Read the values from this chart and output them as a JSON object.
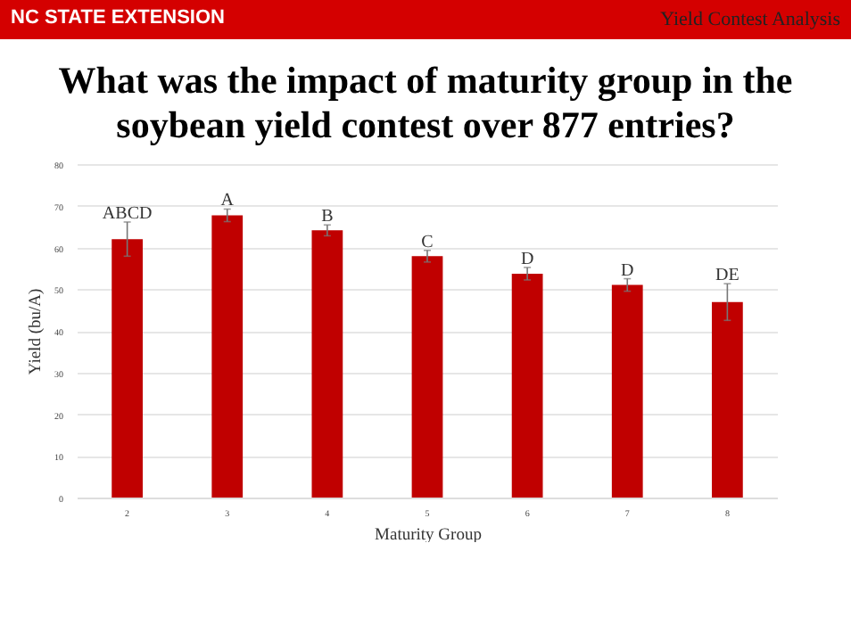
{
  "chart_data": {
    "type": "bar",
    "title": "What was the impact of maturity group in the soybean yield contest over 877 entries?",
    "xlabel": "Maturity Group",
    "ylabel": "Yield (bu/A)",
    "categories": [
      "2",
      "3",
      "4",
      "5",
      "6",
      "7",
      "8"
    ],
    "values": [
      62,
      67.7,
      64.1,
      57.9,
      53.7,
      51,
      46.9
    ],
    "errors": [
      4.1,
      1.5,
      1.3,
      1.4,
      1.5,
      1.5,
      4.4
    ],
    "color": "#c00000",
    "ylim": [
      0,
      80
    ],
    "yticks": [
      0,
      10,
      20,
      30,
      40,
      50,
      60,
      70,
      80
    ],
    "grid": "y",
    "annotations": [
      "NC STATE EXTENSION",
      "Yield Contest Analysis",
      {
        "text": "ABCD",
        "x": "2",
        "y": 66.1
      },
      {
        "text": "A",
        "x": "3",
        "y": 69.2
      },
      {
        "text": "B",
        "x": "4",
        "y": 65.4
      },
      {
        "text": "C",
        "x": "5",
        "y": 59.3
      },
      {
        "text": "D",
        "x": "6",
        "y": 55.2
      },
      {
        "text": "D",
        "x": "7",
        "y": 52.5
      },
      {
        "text": "DE",
        "x": "8",
        "y": 51.3
      }
    ]
  }
}
